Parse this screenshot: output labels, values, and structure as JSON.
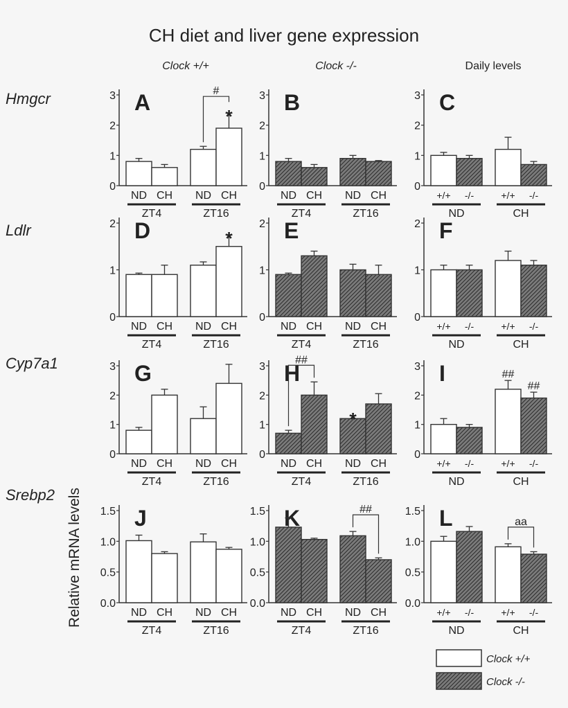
{
  "title": "CH diet and liver gene expression",
  "column_headers": [
    "Clock +/+",
    "Clock -/-",
    "Daily levels"
  ],
  "row_labels": [
    "Hmgcr",
    "Ldlr",
    "Cyp7a1",
    "Srebp2"
  ],
  "ylabel": "Relative mRNA levels",
  "colors": {
    "wild_type_fill": "#ffffff",
    "mutant_fill": "#777777",
    "hatch": "#2a2a2a",
    "axis": "#333333"
  },
  "legend": [
    {
      "label": "Clock +/+",
      "fill": "white"
    },
    {
      "label": "Clock -/-",
      "fill": "hatched"
    }
  ],
  "chart_data": [
    {
      "panel": "A",
      "gene": "Hmgcr",
      "type": "bar",
      "yticks": [
        "0",
        "1",
        "2",
        "3"
      ],
      "ylim": [
        0,
        3
      ],
      "categories": [
        "ND",
        "CH",
        "ND",
        "CH"
      ],
      "groups": [
        "ZT4",
        "ZT16"
      ],
      "fills": [
        "white",
        "white",
        "white",
        "white"
      ],
      "values": [
        0.8,
        0.6,
        1.2,
        1.9
      ],
      "error_upper": [
        0.9,
        0.7,
        1.3,
        2.4
      ],
      "annotations": [
        {
          "type": "bracket",
          "bars": [
            2,
            3
          ],
          "label": "#"
        },
        {
          "type": "mark",
          "bar": 3,
          "label": "*"
        }
      ]
    },
    {
      "panel": "B",
      "gene": "Hmgcr",
      "type": "bar",
      "yticks": [
        "0",
        "1",
        "2",
        "3"
      ],
      "ylim": [
        0,
        3
      ],
      "categories": [
        "ND",
        "CH",
        "ND",
        "CH"
      ],
      "groups": [
        "ZT4",
        "ZT16"
      ],
      "fills": [
        "hatched",
        "hatched",
        "hatched",
        "hatched"
      ],
      "values": [
        0.8,
        0.6,
        0.9,
        0.8
      ],
      "error_upper": [
        0.9,
        0.7,
        1.0,
        0.83
      ],
      "annotations": []
    },
    {
      "panel": "C",
      "gene": "Hmgcr",
      "type": "bar",
      "yticks": [
        "0",
        "1",
        "2",
        "3"
      ],
      "ylim": [
        0,
        3
      ],
      "categories": [
        "+/+",
        "-/-",
        "+/+",
        "-/-"
      ],
      "groups": [
        "ND",
        "CH"
      ],
      "fills": [
        "white",
        "hatched",
        "white",
        "hatched"
      ],
      "values": [
        1.0,
        0.9,
        1.2,
        0.7
      ],
      "error_upper": [
        1.1,
        1.0,
        1.6,
        0.8
      ],
      "annotations": []
    },
    {
      "panel": "D",
      "gene": "Ldlr",
      "type": "bar",
      "yticks": [
        "0",
        "1",
        "2"
      ],
      "ylim": [
        0,
        2
      ],
      "categories": [
        "ND",
        "CH",
        "ND",
        "CH"
      ],
      "groups": [
        "ZT4",
        "ZT16"
      ],
      "fills": [
        "white",
        "white",
        "white",
        "white"
      ],
      "values": [
        0.9,
        0.9,
        1.1,
        1.5
      ],
      "error_upper": [
        0.93,
        1.1,
        1.17,
        1.75
      ],
      "annotations": [
        {
          "type": "mark",
          "bar": 3,
          "label": "*"
        }
      ]
    },
    {
      "panel": "E",
      "gene": "Ldlr",
      "type": "bar",
      "yticks": [
        "0",
        "1",
        "2"
      ],
      "ylim": [
        0,
        2
      ],
      "categories": [
        "ND",
        "CH",
        "ND",
        "CH"
      ],
      "groups": [
        "ZT4",
        "ZT16"
      ],
      "fills": [
        "hatched",
        "hatched",
        "hatched",
        "hatched"
      ],
      "values": [
        0.9,
        1.3,
        1.0,
        0.9
      ],
      "error_upper": [
        0.93,
        1.4,
        1.12,
        1.1
      ],
      "annotations": []
    },
    {
      "panel": "F",
      "gene": "Ldlr",
      "type": "bar",
      "yticks": [
        "0",
        "1",
        "2"
      ],
      "ylim": [
        0,
        2
      ],
      "categories": [
        "+/+",
        "-/-",
        "+/+",
        "-/-"
      ],
      "groups": [
        "ND",
        "CH"
      ],
      "fills": [
        "white",
        "hatched",
        "white",
        "hatched"
      ],
      "values": [
        1.0,
        1.0,
        1.2,
        1.1
      ],
      "error_upper": [
        1.1,
        1.1,
        1.4,
        1.2
      ],
      "annotations": []
    },
    {
      "panel": "G",
      "gene": "Cyp7a1",
      "type": "bar",
      "yticks": [
        "0",
        "1",
        "2",
        "3"
      ],
      "ylim": [
        0,
        3
      ],
      "categories": [
        "ND",
        "CH",
        "ND",
        "CH"
      ],
      "groups": [
        "ZT4",
        "ZT16"
      ],
      "fills": [
        "white",
        "white",
        "white",
        "white"
      ],
      "values": [
        0.8,
        2.0,
        1.2,
        2.4
      ],
      "error_upper": [
        0.9,
        2.2,
        1.6,
        3.05
      ],
      "annotations": []
    },
    {
      "panel": "H",
      "gene": "Cyp7a1",
      "type": "bar",
      "yticks": [
        "0",
        "1",
        "2",
        "3"
      ],
      "ylim": [
        0,
        3
      ],
      "categories": [
        "ND",
        "CH",
        "ND",
        "CH"
      ],
      "groups": [
        "ZT4",
        "ZT16"
      ],
      "fills": [
        "hatched",
        "hatched",
        "hatched",
        "hatched"
      ],
      "values": [
        0.7,
        2.0,
        1.2,
        1.7
      ],
      "error_upper": [
        0.8,
        2.45,
        1.3,
        2.05
      ],
      "annotations": [
        {
          "type": "bracket",
          "bars": [
            0,
            1
          ],
          "label": "##"
        },
        {
          "type": "mark",
          "bar": 2,
          "label": "*"
        }
      ]
    },
    {
      "panel": "I",
      "gene": "Cyp7a1",
      "type": "bar",
      "yticks": [
        "0",
        "1",
        "2",
        "3"
      ],
      "ylim": [
        0,
        3
      ],
      "categories": [
        "+/+",
        "-/-",
        "+/+",
        "-/-"
      ],
      "groups": [
        "ND",
        "CH"
      ],
      "fills": [
        "white",
        "hatched",
        "white",
        "hatched"
      ],
      "values": [
        1.0,
        0.9,
        2.2,
        1.9
      ],
      "error_upper": [
        1.2,
        1.0,
        2.5,
        2.1
      ],
      "annotations": [
        {
          "type": "mark",
          "bar": 2,
          "label": "##"
        },
        {
          "type": "mark",
          "bar": 3,
          "label": "##"
        }
      ]
    },
    {
      "panel": "J",
      "gene": "Srebp2",
      "type": "bar",
      "yticks": [
        "0.0",
        "0.5",
        "1.0",
        "1.5"
      ],
      "ylim": [
        0,
        1.5
      ],
      "categories": [
        "ND",
        "CH",
        "ND",
        "CH"
      ],
      "groups": [
        "ZT4",
        "ZT16"
      ],
      "fills": [
        "white",
        "white",
        "white",
        "white"
      ],
      "values": [
        1.01,
        0.8,
        0.99,
        0.87
      ],
      "error_upper": [
        1.1,
        0.83,
        1.12,
        0.9
      ],
      "annotations": []
    },
    {
      "panel": "K",
      "gene": "Srebp2",
      "type": "bar",
      "yticks": [
        "0.0",
        "0.5",
        "1.0",
        "1.5"
      ],
      "ylim": [
        0,
        1.5
      ],
      "categories": [
        "ND",
        "CH",
        "ND",
        "CH"
      ],
      "groups": [
        "ZT4",
        "ZT16"
      ],
      "fills": [
        "hatched",
        "hatched",
        "hatched",
        "hatched"
      ],
      "values": [
        1.23,
        1.03,
        1.09,
        0.7
      ],
      "error_upper": [
        1.38,
        1.05,
        1.16,
        0.73
      ],
      "annotations": [
        {
          "type": "bracket",
          "bars": [
            2,
            3
          ],
          "label": "##"
        }
      ]
    },
    {
      "panel": "L",
      "gene": "Srebp2",
      "type": "bar",
      "yticks": [
        "0.0",
        "0.5",
        "1.0",
        "1.5"
      ],
      "ylim": [
        0,
        1.5
      ],
      "categories": [
        "+/+",
        "-/-",
        "+/+",
        "-/-"
      ],
      "groups": [
        "ND",
        "CH"
      ],
      "fills": [
        "white",
        "hatched",
        "white",
        "hatched"
      ],
      "values": [
        1.0,
        1.16,
        0.91,
        0.79
      ],
      "error_upper": [
        1.08,
        1.24,
        0.96,
        0.83
      ],
      "annotations": [
        {
          "type": "bracket",
          "bars": [
            2,
            3
          ],
          "label": "aa"
        }
      ]
    }
  ]
}
